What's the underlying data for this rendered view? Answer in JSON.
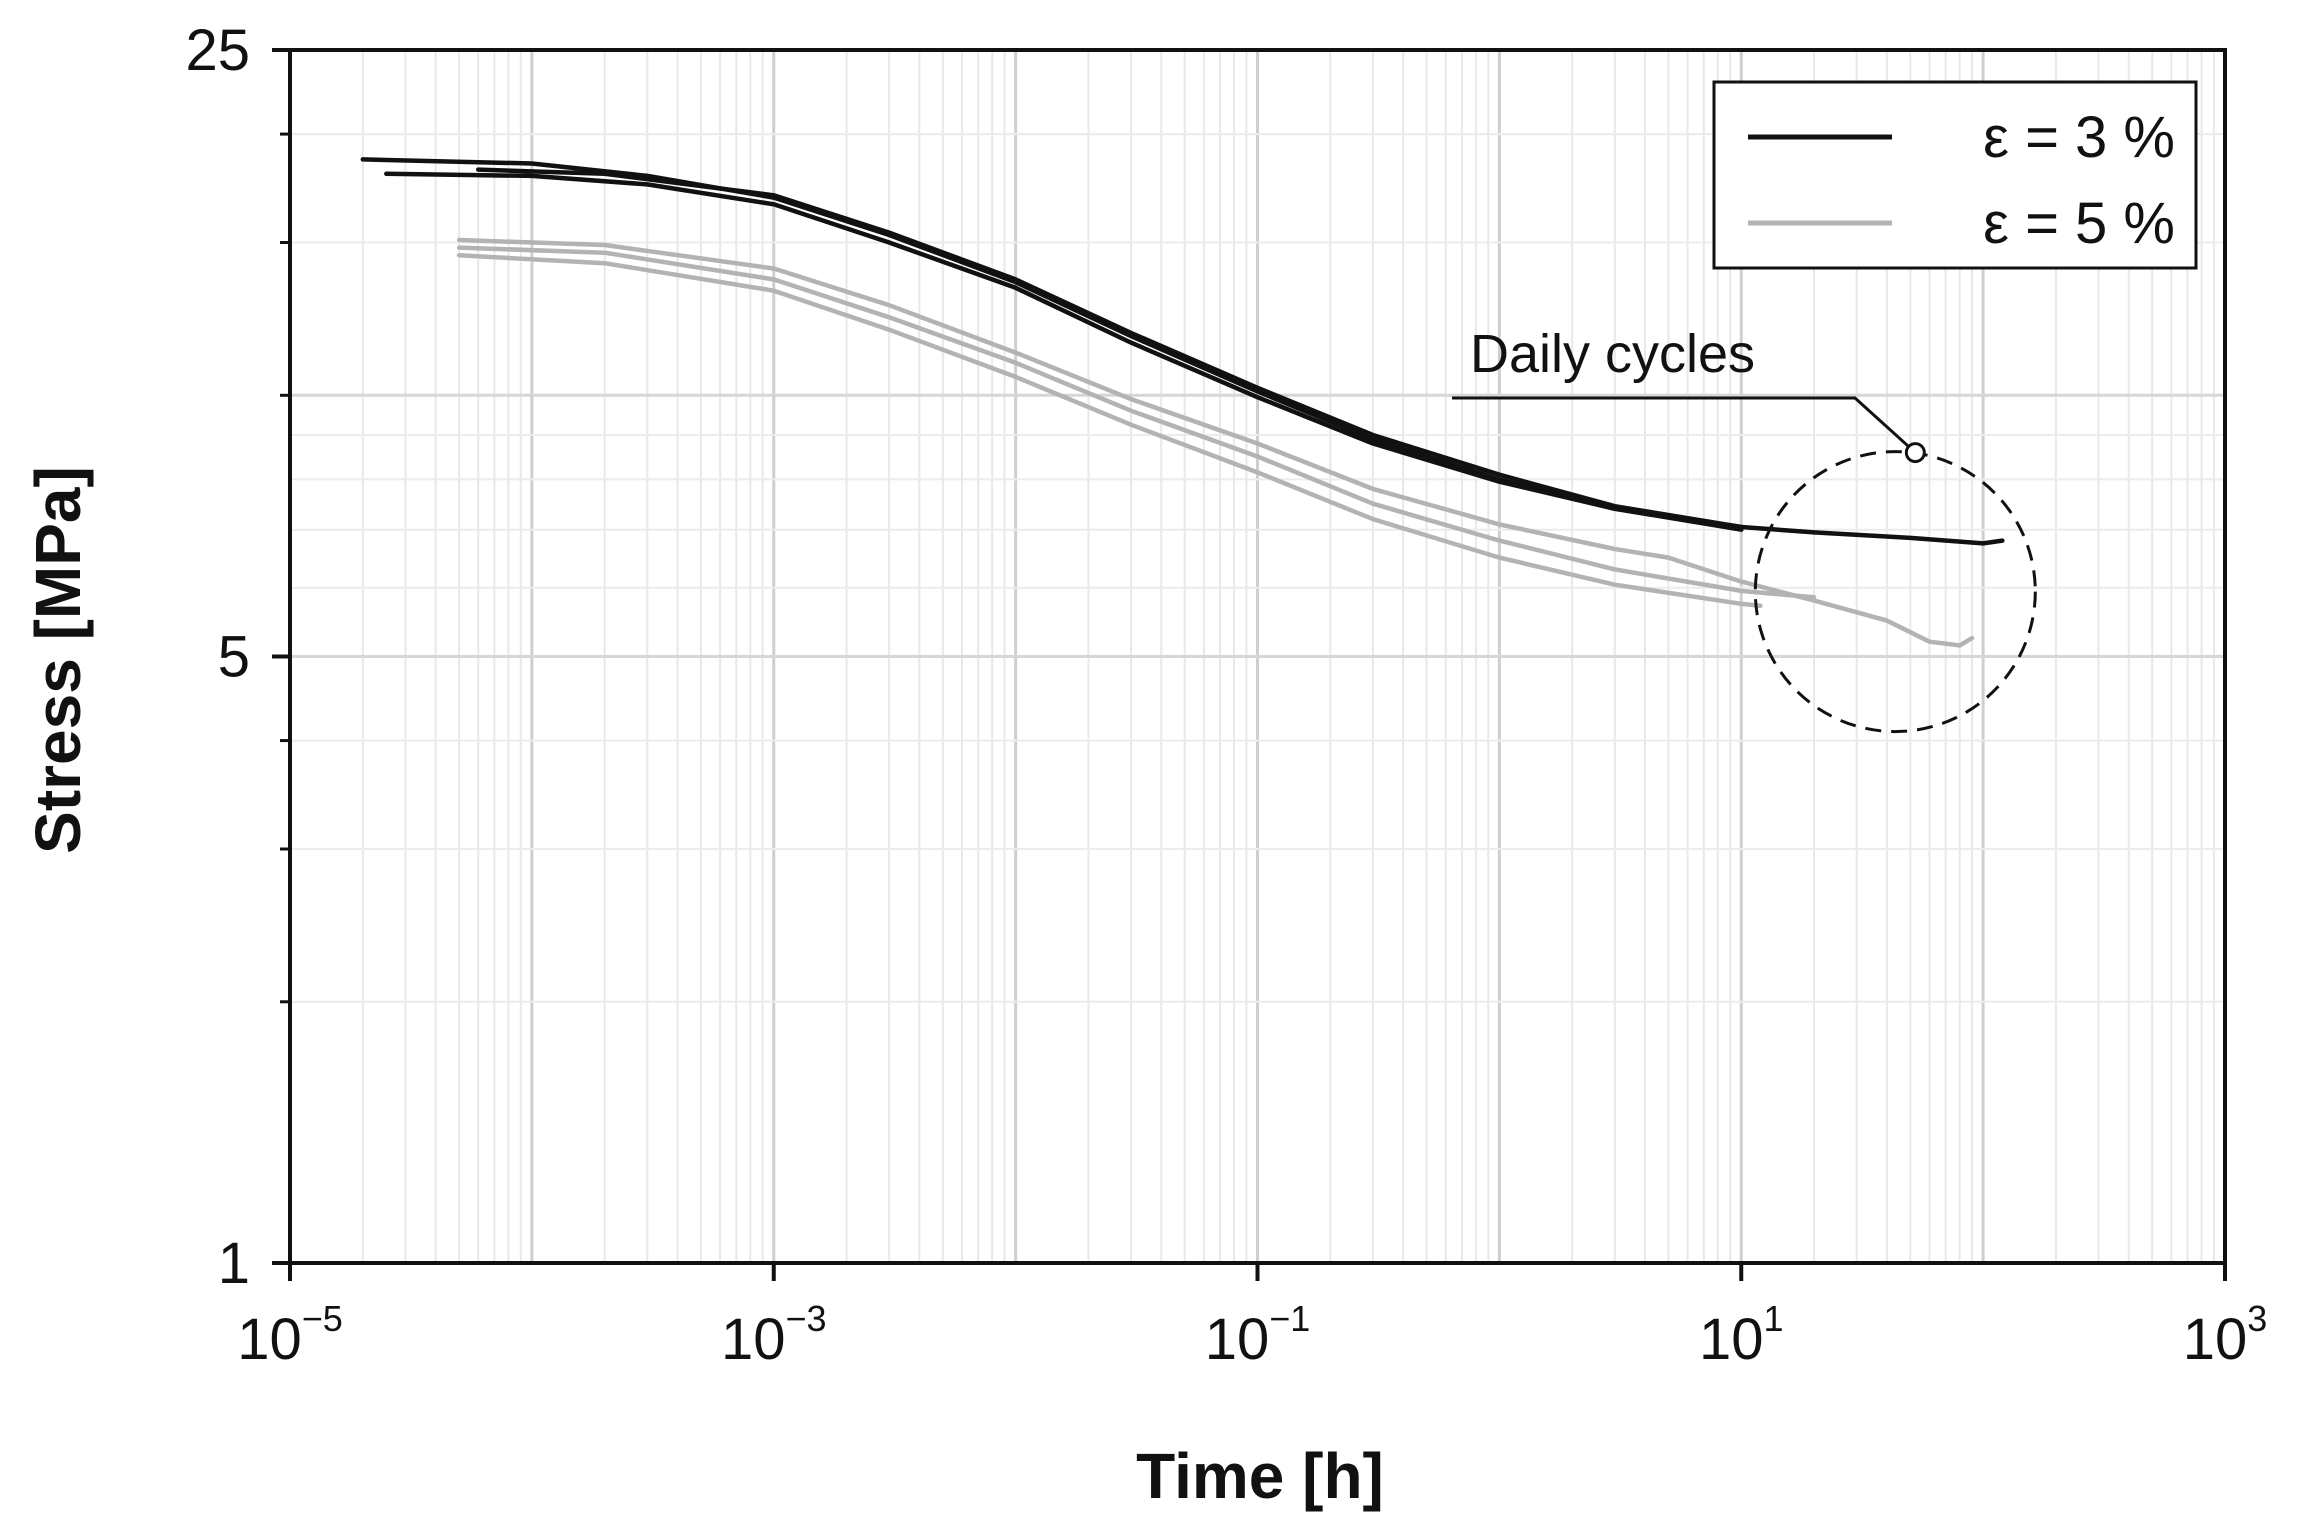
{
  "chart_data": {
    "type": "line",
    "title": "",
    "xlabel": "Time [h]",
    "ylabel": "Stress [MPa]",
    "x_scale": "log",
    "y_scale": "log",
    "xlim": [
      1e-05,
      1000
    ],
    "ylim": [
      1,
      25
    ],
    "grid": true,
    "legend_position": "top-right",
    "x_ticks": [
      {
        "base": "10",
        "exp": "−5"
      },
      {
        "base": "10",
        "exp": "−3"
      },
      {
        "base": "10",
        "exp": "−1"
      },
      {
        "base": "10",
        "exp": "1"
      },
      {
        "base": "10",
        "exp": "3"
      }
    ],
    "y_ticks": [
      "25",
      "5",
      "1"
    ],
    "legend": [
      {
        "label": "ε = 3 %",
        "color": "#111111"
      },
      {
        "label": "ε = 5 %",
        "color": "#b3b3b3"
      }
    ],
    "annotation": {
      "text": "Daily cycles",
      "x": 50,
      "y": 6.1
    },
    "series": [
      {
        "group": "ε = 3 %",
        "color": "#111111",
        "points": [
          [
            2e-05,
            18.7
          ],
          [
            0.0001,
            18.5
          ],
          [
            0.0003,
            17.9
          ],
          [
            0.001,
            16.9
          ],
          [
            0.003,
            15.3
          ],
          [
            0.01,
            13.5
          ],
          [
            0.03,
            11.7
          ],
          [
            0.1,
            10.1
          ],
          [
            0.3,
            8.9
          ],
          [
            1,
            8.0
          ],
          [
            3,
            7.4
          ],
          [
            10,
            7.05
          ],
          [
            20,
            6.95
          ],
          [
            50,
            6.85
          ],
          [
            100,
            6.75
          ],
          [
            120,
            6.8
          ]
        ]
      },
      {
        "group": "ε = 3 %",
        "color": "#111111",
        "points": [
          [
            6e-05,
            18.2
          ],
          [
            0.0002,
            18.0
          ],
          [
            0.001,
            17.0
          ],
          [
            0.003,
            15.4
          ],
          [
            0.01,
            13.6
          ],
          [
            0.03,
            11.8
          ],
          [
            0.1,
            10.2
          ],
          [
            0.3,
            9.0
          ],
          [
            1,
            8.1
          ],
          [
            3,
            7.45
          ],
          [
            10,
            7.05
          ]
        ]
      },
      {
        "group": "ε = 3 %",
        "color": "#111111",
        "points": [
          [
            2.5e-05,
            18.0
          ],
          [
            0.0001,
            17.9
          ],
          [
            0.0003,
            17.5
          ],
          [
            0.001,
            16.6
          ],
          [
            0.003,
            15.0
          ],
          [
            0.01,
            13.3
          ],
          [
            0.03,
            11.5
          ],
          [
            0.1,
            9.95
          ],
          [
            0.3,
            8.8
          ],
          [
            1,
            7.95
          ],
          [
            3,
            7.4
          ],
          [
            10,
            7.0
          ]
        ]
      },
      {
        "group": "ε = 5 %",
        "color": "#b3b3b3",
        "points": [
          [
            5e-05,
            15.1
          ],
          [
            0.0002,
            14.9
          ],
          [
            0.001,
            14.0
          ],
          [
            0.003,
            12.7
          ],
          [
            0.01,
            11.2
          ],
          [
            0.03,
            9.9
          ],
          [
            0.1,
            8.8
          ],
          [
            0.3,
            7.8
          ],
          [
            1,
            7.1
          ],
          [
            3,
            6.65
          ],
          [
            5,
            6.5
          ],
          [
            10,
            6.1
          ],
          [
            20,
            5.8
          ],
          [
            40,
            5.5
          ],
          [
            60,
            5.2
          ],
          [
            80,
            5.15
          ],
          [
            90,
            5.25
          ]
        ]
      },
      {
        "group": "ε = 5 %",
        "color": "#b3b3b3",
        "points": [
          [
            5e-05,
            14.8
          ],
          [
            0.0002,
            14.6
          ],
          [
            0.001,
            13.6
          ],
          [
            0.003,
            12.3
          ],
          [
            0.01,
            10.9
          ],
          [
            0.03,
            9.6
          ],
          [
            0.1,
            8.5
          ],
          [
            0.3,
            7.5
          ],
          [
            1,
            6.8
          ],
          [
            3,
            6.3
          ],
          [
            10,
            5.95
          ],
          [
            20,
            5.85
          ]
        ]
      },
      {
        "group": "ε = 5 %",
        "color": "#b3b3b3",
        "points": [
          [
            5e-05,
            14.5
          ],
          [
            0.0002,
            14.2
          ],
          [
            0.001,
            13.2
          ],
          [
            0.003,
            11.9
          ],
          [
            0.01,
            10.5
          ],
          [
            0.03,
            9.25
          ],
          [
            0.1,
            8.15
          ],
          [
            0.3,
            7.2
          ],
          [
            1,
            6.5
          ],
          [
            3,
            6.05
          ],
          [
            10,
            5.75
          ],
          [
            12,
            5.72
          ]
        ]
      }
    ]
  }
}
